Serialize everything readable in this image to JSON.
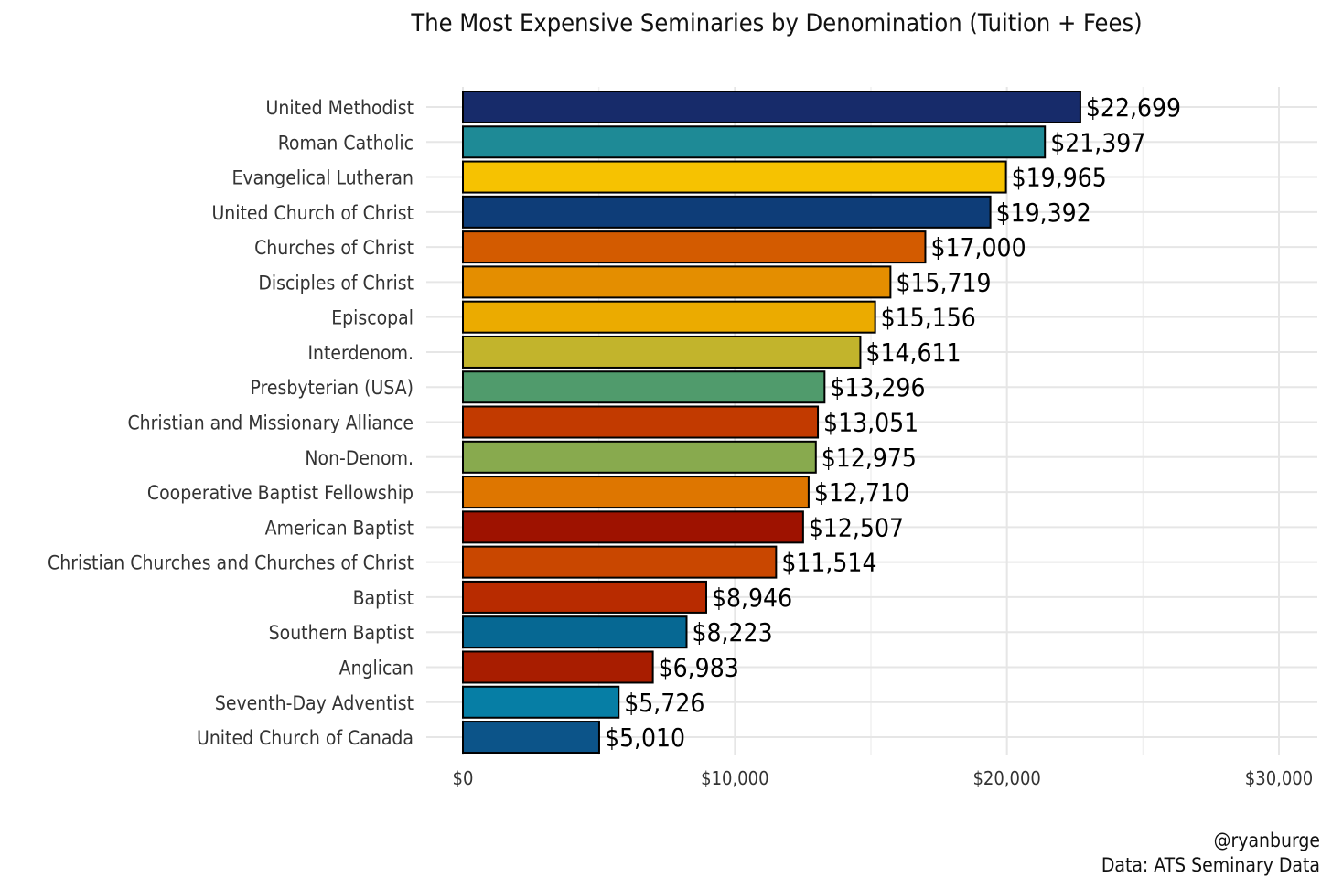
{
  "chart_data": {
    "type": "bar",
    "orientation": "horizontal",
    "title": "The Most Expensive Seminaries by Denomination (Tuition + Fees)",
    "xlabel": "",
    "ylabel": "",
    "xlim": [
      0,
      30000
    ],
    "x_ticks": [
      0,
      10000,
      20000,
      30000
    ],
    "x_tick_labels": [
      "$0",
      "$10,000",
      "$20,000",
      "$30,000"
    ],
    "grid": true,
    "legend": "none",
    "categories": [
      "United Methodist",
      "Roman Catholic",
      "Evangelical Lutheran",
      "United Church of Christ",
      "Churches of Christ",
      "Disciples of Christ",
      "Episcopal",
      "Interdenom.",
      "Presbyterian (USA)",
      "Christian and Missionary Alliance",
      "Non-Denom.",
      "Cooperative Baptist Fellowship",
      "American Baptist",
      "Christian Churches and Churches of Christ",
      "Baptist",
      "Southern Baptist",
      "Anglican",
      "Seventh-Day Adventist",
      "United Church of Canada"
    ],
    "values": [
      22699,
      21397,
      19965,
      19392,
      17000,
      15719,
      15156,
      14611,
      13296,
      13051,
      12975,
      12710,
      12507,
      11514,
      8946,
      8223,
      6983,
      5726,
      5010
    ],
    "value_labels": [
      "$22,699",
      "$21,397",
      "$19,965",
      "$19,392",
      "$17,000",
      "$15,719",
      "$15,156",
      "$14,611",
      "$13,296",
      "$13,051",
      "$12,975",
      "$12,710",
      "$12,507",
      "$11,514",
      "$8,946",
      "$8,223",
      "$6,983",
      "$5,726",
      "$5,010"
    ],
    "colors": [
      "#172b6a",
      "#1e8a96",
      "#f6c201",
      "#0e3d78",
      "#d35b00",
      "#e48e00",
      "#ebab00",
      "#c2b42c",
      "#509b6c",
      "#c23a00",
      "#88aa4e",
      "#de7600",
      "#9e1200",
      "#c94700",
      "#b82b00",
      "#066893",
      "#a81d00",
      "#067ea5",
      "#0c5489"
    ],
    "caption": [
      "@ryanburge",
      "Data: ATS Seminary Data"
    ]
  }
}
